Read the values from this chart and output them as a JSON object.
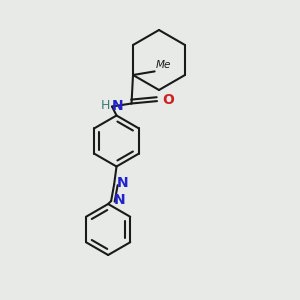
{
  "bg_color": "#e8eae8",
  "bond_color": "#1a1a1a",
  "N_color": "#2222cc",
  "O_color": "#cc2222",
  "H_color": "#3a7a7a",
  "lw": 1.5,
  "lw_thick": 1.5,
  "xlim": [
    0,
    1
  ],
  "ylim": [
    0,
    1
  ]
}
